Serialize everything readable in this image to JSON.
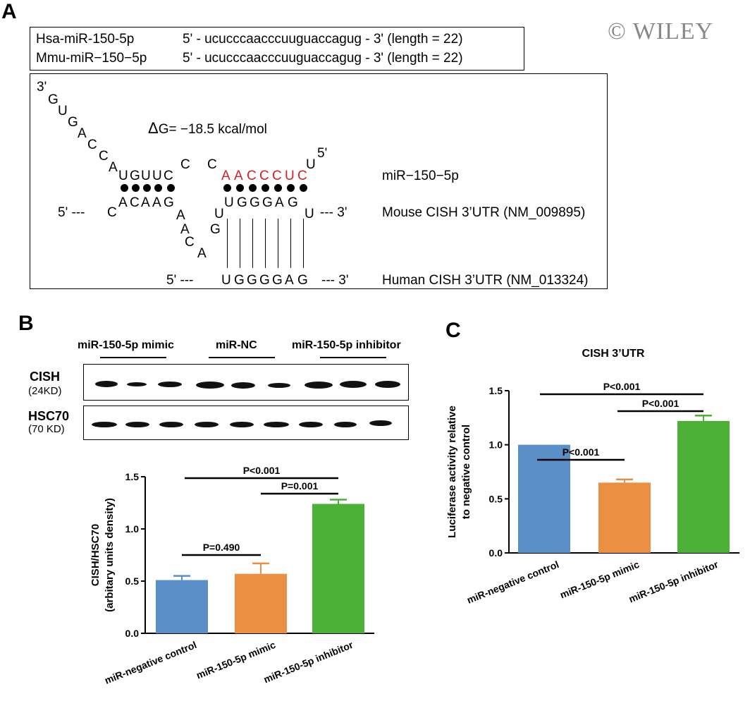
{
  "panels": {
    "a": "A",
    "b": "B",
    "c": "C"
  },
  "watermark": "© WILEY",
  "colors": {
    "blue": "#5b8fc7",
    "orange": "#eb8f45",
    "green": "#4db137",
    "red": "#d32020"
  },
  "panel_a": {
    "sequences": [
      {
        "name": "Hsa-miR-150-5p",
        "seq": "5' - ucucccaacccuuguaccagug - 3' (length = 22)"
      },
      {
        "name": "Mmu-miR−150−5p",
        "seq": "5' - ucucccaacccuuguaccagug - 3' (length = 22)"
      }
    ],
    "delta_g": "G= −18.5 kcal/mol",
    "labels": {
      "mirna": "miR−150−5p",
      "mouse": "Mouse CISH 3’UTR (NM_009895)",
      "human": "Human CISH 3’UTR (NM_013324)"
    },
    "ends": {
      "three_prime": "3'",
      "five_prime": "5'",
      "dash5": "5' ---",
      "dash3": "--- 3'"
    },
    "tail_nts": [
      "G",
      "U",
      "G",
      "A",
      "C",
      "C",
      "A"
    ],
    "mir_pair_a": "UGUUC",
    "mir_bulge": [
      "C",
      "C"
    ],
    "mir_seed": "AACCCUC",
    "mir_end": "U",
    "mouse_c": "C",
    "mouse_pair_a": "ACAAG",
    "mouse_loop": [
      "A",
      "A",
      "C",
      "A",
      "G"
    ],
    "mouse_u": "U",
    "mouse_seed": "UGGGAG",
    "mouse_u_end": "U",
    "human_seed": "UGGGGAG"
  },
  "panel_b": {
    "blot_groups": [
      "miR-150-5p mimic",
      "miR-NC",
      "miR-150-5p inhibitor"
    ],
    "cish_label": "CISH",
    "cish_sub": "(24KD)",
    "hsc_label": "HSC70",
    "hsc_sub": "(70 KD)"
  },
  "chart_data": [
    {
      "type": "bar",
      "categories": [
        "miR-negative control",
        "miR-150-5p mimic",
        "miR-150-5p inhibitor"
      ],
      "values": [
        0.51,
        0.57,
        1.24
      ],
      "errors": [
        0.04,
        0.1,
        0.04
      ],
      "ylabel": "CISH/HSC70\n(arbitary units density)",
      "ylim": [
        0,
        1.5
      ],
      "yticks": [
        "0.0",
        "0.5",
        "1.0",
        "1.5"
      ],
      "significance": [
        {
          "from": 0,
          "to": 1,
          "label": "P=0.490"
        },
        {
          "from": 1,
          "to": 2,
          "label": "P=0.001"
        },
        {
          "from": 0,
          "to": 2,
          "label": "P<0.001"
        }
      ]
    },
    {
      "type": "bar",
      "title": "CISH 3’UTR",
      "categories": [
        "miR-negative control",
        "miR-150-5p mimic",
        "miR-150-5p inhibitor"
      ],
      "values": [
        1.0,
        0.65,
        1.22
      ],
      "errors": [
        0.0,
        0.03,
        0.05
      ],
      "ylabel": "Luciferase activity relative\nto negative control",
      "ylim": [
        0,
        1.5
      ],
      "yticks": [
        "0.0",
        "0.5",
        "1.0",
        "1.5"
      ],
      "significance": [
        {
          "from": 0,
          "to": 1,
          "label": "P<0.001"
        },
        {
          "from": 1,
          "to": 2,
          "label": "P<0.001"
        },
        {
          "from": 0,
          "to": 2,
          "label": "P<0.001"
        }
      ]
    }
  ]
}
